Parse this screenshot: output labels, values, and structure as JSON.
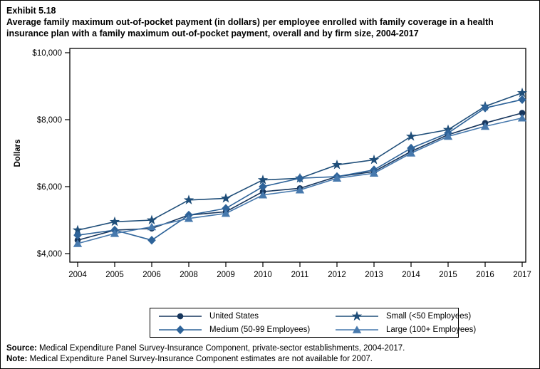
{
  "header": {
    "exhibit": "Exhibit 5.18",
    "title": "Average family maximum out-of-pocket payment (in dollars) per employee enrolled with family coverage in a health insurance plan with a family maximum out-of-pocket payment, overall and by firm size, 2004-2017"
  },
  "chart_data": {
    "type": "line",
    "title": "Average family maximum out-of-pocket payment per employee with family coverage, overall and by firm size, 2004-2017",
    "xlabel": "",
    "ylabel": "Dollars",
    "ylim": [
      4000,
      10000
    ],
    "yticks": [
      4000,
      6000,
      8000,
      10000
    ],
    "ytick_labels": [
      "$4,000",
      "$6,000",
      "$8,000",
      "$10,000"
    ],
    "x_labels": [
      "2004",
      "2005",
      "2006",
      "2008",
      "2009",
      "2010",
      "2011",
      "2012",
      "2013",
      "2014",
      "2015",
      "2016",
      "2017"
    ],
    "grid": "off",
    "legend_position": "bottom",
    "series": [
      {
        "name": "United States",
        "marker": "circle",
        "color": "#17365d",
        "values": [
          4400,
          4700,
          4750,
          5150,
          5250,
          5850,
          5950,
          6300,
          6450,
          7050,
          7550,
          7900,
          8200
        ]
      },
      {
        "name": "Small (<50 Employees)",
        "marker": "star",
        "color": "#1f4e79",
        "values": [
          4700,
          4950,
          5000,
          5600,
          5650,
          6200,
          6250,
          6650,
          6800,
          7500,
          7700,
          8400,
          8800
        ]
      },
      {
        "name": "Medium (50-99 Employees)",
        "marker": "diamond",
        "color": "#2e6399",
        "values": [
          4550,
          4700,
          4400,
          5150,
          5350,
          6000,
          6250,
          6300,
          6500,
          7150,
          7600,
          8350,
          8600
        ]
      },
      {
        "name": "Large (100+ Employees)",
        "marker": "triangle",
        "color": "#4779ad",
        "values": [
          4300,
          4600,
          4800,
          5050,
          5200,
          5750,
          5900,
          6250,
          6400,
          7000,
          7500,
          7800,
          8050
        ]
      }
    ],
    "note": "Estimates are not available for 2007"
  },
  "footer": {
    "source_label": "Source:",
    "source_text": " Medical Expenditure Panel Survey-Insurance Component, private-sector establishments, 2004-2017.",
    "note_label": "Note:",
    "note_text": " Medical Expenditure Panel Survey-Insurance Component estimates are not available for 2007."
  }
}
